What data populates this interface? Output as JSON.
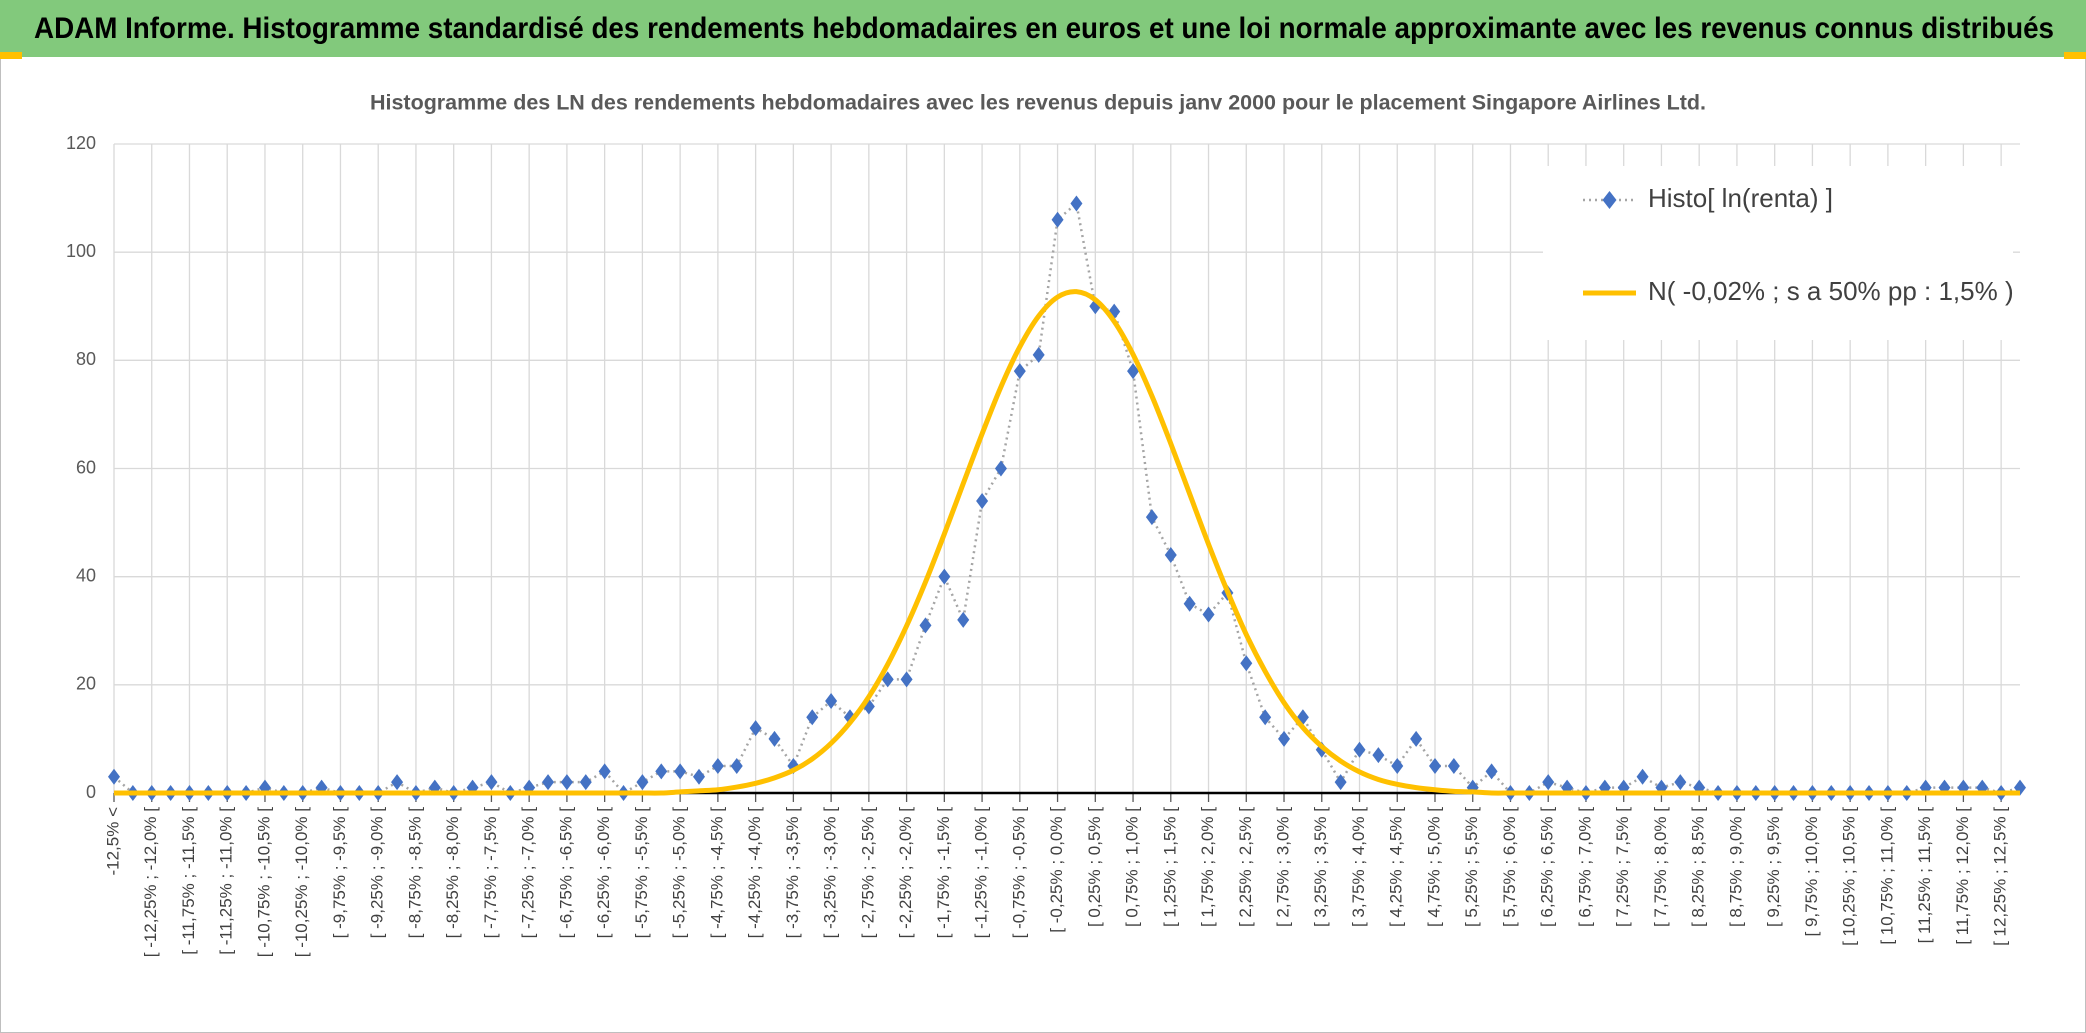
{
  "banner": "ADAM Informe. Histogramme standardisé des rendements hebdomadaires en euros et une loi normale approximante avec les revenus connus distribués",
  "chart_data": {
    "type": "line",
    "title": "Histogramme des LN des rendements hebdomadaires avec les revenus depuis janv 2000 pour le placement Singapore Airlines Ltd.",
    "categories": [
      "-12,5% <",
      null,
      "[ -12,25% ; -12,0% [",
      null,
      "[ -11,75% ; -11,5% [",
      null,
      "[ -11,25% ; -11,0% [",
      null,
      "[ -10,75% ; -10,5% [",
      null,
      "[ -10,25% ; -10,0% [",
      null,
      "[ -9,75% ; -9,5% [",
      null,
      "[ -9,25% ; -9,0% [",
      null,
      "[ -8,75% ; -8,5% [",
      null,
      "[ -8,25% ; -8,0% [",
      null,
      "[ -7,75% ; -7,5% [",
      null,
      "[ -7,25% ; -7,0% [",
      null,
      "[ -6,75% ; -6,5% [",
      null,
      "[ -6,25% ; -6,0% [",
      null,
      "[ -5,75% ; -5,5% [",
      null,
      "[ -5,25% ; -5,0% [",
      null,
      "[ -4,75% ; -4,5% [",
      null,
      "[ -4,25% ; -4,0% [",
      null,
      "[ -3,75% ; -3,5% [",
      null,
      "[ -3,25% ; -3,0% [",
      null,
      "[ -2,75% ; -2,5% [",
      null,
      "[ -2,25% ; -2,0% [",
      null,
      "[ -1,75% ; -1,5% [",
      null,
      "[ -1,25% ; -1,0% [",
      null,
      "[ -0,75% ; -0,5% [",
      null,
      "[ -0,25% ; 0,0% [",
      null,
      "[ 0,25% ; 0,5% [",
      null,
      "[ 0,75% ; 1,0% [",
      null,
      "[ 1,25% ; 1,5% [",
      null,
      "[ 1,75% ; 2,0% [",
      null,
      "[ 2,25% ; 2,5% [",
      null,
      "[ 2,75% ; 3,0% [",
      null,
      "[ 3,25% ; 3,5% [",
      null,
      "[ 3,75% ; 4,0% [",
      null,
      "[ 4,25% ; 4,5% [",
      null,
      "[ 4,75% ; 5,0% [",
      null,
      "[ 5,25% ; 5,5% [",
      null,
      "[ 5,75% ; 6,0% [",
      null,
      "[ 6,25% ; 6,5% [",
      null,
      "[ 6,75% ; 7,0% [",
      null,
      "[ 7,25% ; 7,5% [",
      null,
      "[ 7,75% ; 8,0% [",
      null,
      "[ 8,25% ; 8,5% [",
      null,
      "[ 8,75% ; 9,0% [",
      null,
      "[ 9,25% ; 9,5% [",
      null,
      "[ 9,75% ; 10,0% [",
      null,
      "[ 10,25% ; 10,5% [",
      null,
      "[ 10,75% ; 11,0% [",
      null,
      "[ 11,25% ; 11,5% [",
      null,
      "[ 11,75% ; 12,0% [",
      null,
      "[ 12,25% ; 12,5% [",
      null
    ],
    "series": [
      {
        "name": "Histo[ ln(renta) ]",
        "color": "#4472c4",
        "line_color": "#a5a5a5",
        "marker": "diamond",
        "values": [
          3,
          0,
          0,
          0,
          0,
          0,
          0,
          0,
          1,
          0,
          0,
          1,
          0,
          0,
          0,
          2,
          0,
          1,
          0,
          1,
          2,
          0,
          1,
          2,
          2,
          2,
          4,
          0,
          2,
          4,
          4,
          3,
          5,
          5,
          12,
          10,
          5,
          14,
          17,
          14,
          16,
          21,
          21,
          31,
          40,
          32,
          54,
          60,
          78,
          81,
          106,
          109,
          90,
          89,
          78,
          51,
          44,
          35,
          33,
          37,
          24,
          14,
          10,
          14,
          8,
          2,
          8,
          7,
          5,
          10,
          5,
          5,
          1,
          4,
          0,
          0,
          2,
          1,
          0,
          1,
          1,
          3,
          1,
          2,
          1,
          0,
          0,
          0,
          0,
          0,
          0,
          0,
          0,
          0,
          0,
          0,
          1,
          1,
          1,
          1,
          0,
          1
        ]
      },
      {
        "name": "N( -0,02% ; s a 50% pp : 1,5% )",
        "color": "#ffc000",
        "values": [
          0,
          0,
          0,
          0,
          0,
          0,
          0,
          0,
          0,
          0,
          0,
          0,
          0,
          0,
          0,
          0,
          0,
          0,
          0,
          0,
          0,
          0,
          0,
          0,
          0,
          0,
          0,
          0,
          0,
          0,
          0.2,
          0.4,
          0.6,
          1.1,
          1.8,
          2.8,
          4.2,
          6.3,
          9.2,
          13.0,
          17.8,
          23.8,
          30.9,
          39.0,
          47.9,
          57.2,
          66.4,
          75.1,
          82.5,
          88.2,
          91.7,
          92.7,
          91.2,
          87.2,
          81.1,
          73.4,
          64.6,
          55.3,
          46.0,
          37.3,
          29.3,
          22.5,
          16.7,
          12.1,
          8.6,
          5.9,
          3.9,
          2.5,
          1.6,
          1.0,
          0.6,
          0.3,
          0.2,
          0,
          0,
          0,
          0,
          0,
          0,
          0,
          0,
          0,
          0,
          0,
          0,
          0,
          0,
          0,
          0,
          0,
          0,
          0,
          0,
          0,
          0,
          0,
          0,
          0,
          0,
          0,
          0,
          0
        ]
      }
    ],
    "ylim": [
      0,
      120
    ],
    "yticks": [
      0,
      20,
      40,
      60,
      80,
      100,
      120
    ],
    "grid": true,
    "legend": "top-right"
  }
}
